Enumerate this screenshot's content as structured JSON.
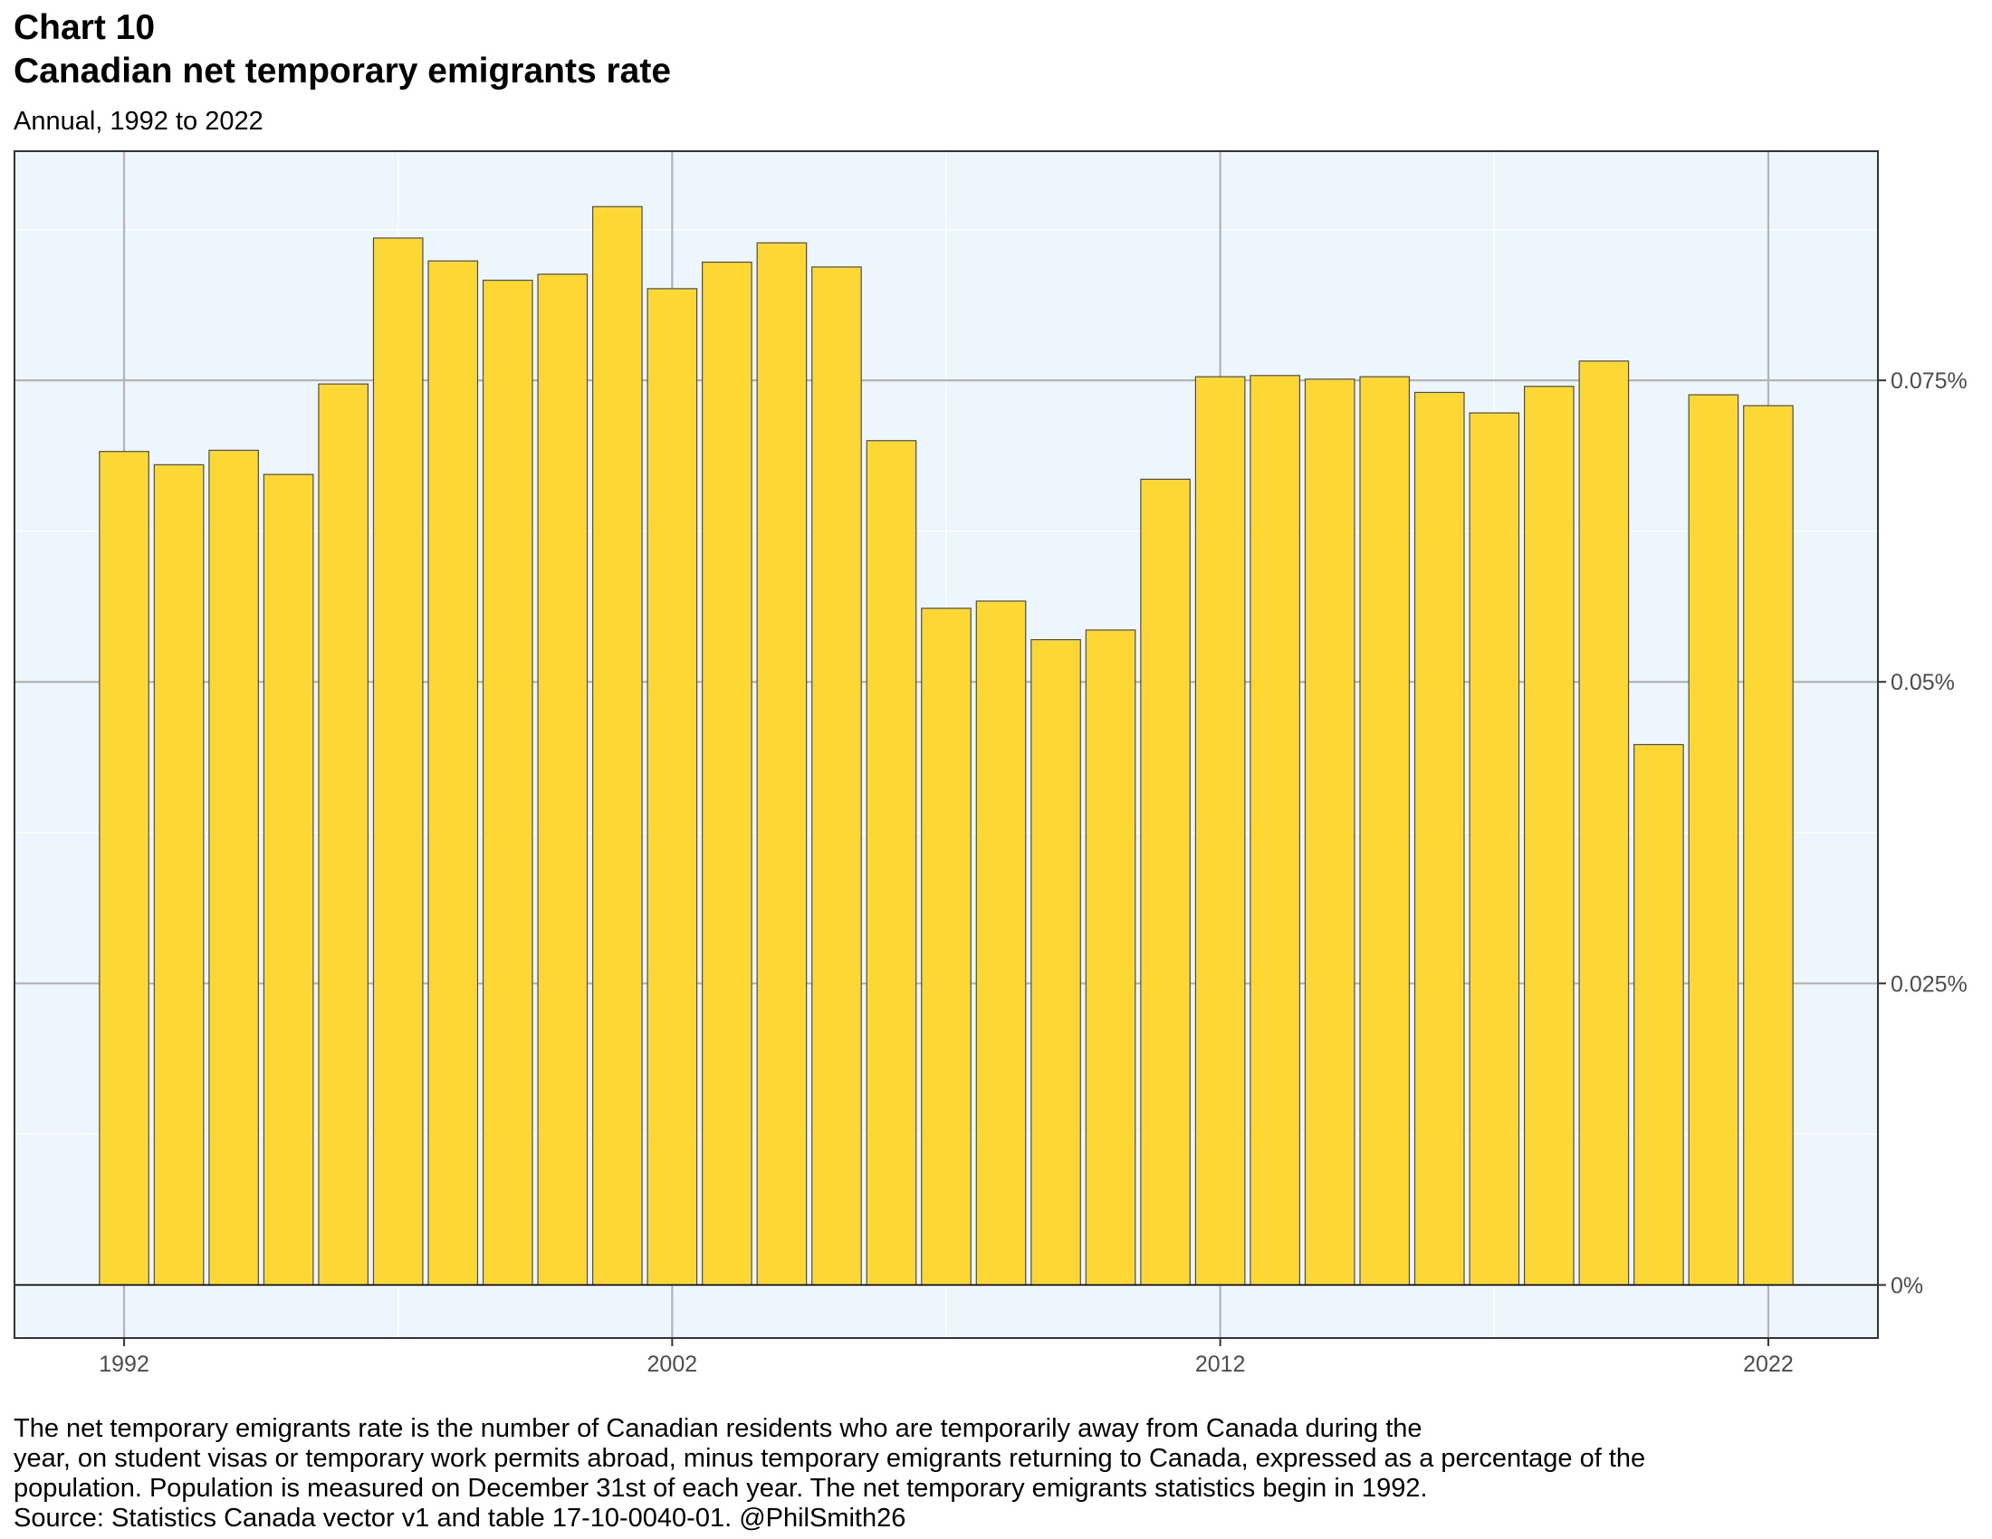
{
  "header": {
    "chart_number": "Chart 10",
    "title": "Canadian net temporary emigrants rate",
    "subtitle": "Annual, 1992 to 2022"
  },
  "caption": {
    "lines": [
      "The net temporary emigrants rate is the number of Canadian residents who are temporarily away from Canada during the",
      "year, on student visas or temporary work permits abroad, minus temporary emigrants returning to Canada, expressed as a percentage of the",
      "population. Population is measured on December 31st of each year. The net temporary emigrants statistics begin in 1992.",
      "Source: Statistics Canada vector v1 and table 17-10-0040-01. @PhilSmith26"
    ]
  },
  "chart_data": {
    "type": "bar",
    "title": "Canadian net temporary emigrants rate",
    "subtitle": "Annual, 1992 to 2022",
    "xlabel": "",
    "ylabel": "",
    "x": [
      1992,
      1993,
      1994,
      1995,
      1996,
      1997,
      1998,
      1999,
      2000,
      2001,
      2002,
      2003,
      2004,
      2005,
      2006,
      2007,
      2008,
      2009,
      2010,
      2011,
      2012,
      2013,
      2014,
      2015,
      2016,
      2017,
      2018,
      2019,
      2020,
      2021,
      2022
    ],
    "values": [
      0.0691,
      0.068,
      0.0692,
      0.0672,
      0.0747,
      0.0868,
      0.0849,
      0.0833,
      0.0838,
      0.0894,
      0.0826,
      0.0848,
      0.0864,
      0.0844,
      0.07,
      0.0561,
      0.0567,
      0.0535,
      0.0543,
      0.0668,
      0.0753,
      0.0754,
      0.0751,
      0.0753,
      0.074,
      0.0723,
      0.0745,
      0.0766,
      0.0448,
      0.0738,
      0.0729
    ],
    "value_unit": "percent",
    "ylim": [
      -0.0044,
      0.094
    ],
    "xlim": [
      1990.0,
      2024.0
    ],
    "y_ticks": [
      0,
      0.025,
      0.05,
      0.075
    ],
    "y_tick_labels": [
      "0%",
      "0.025%",
      "0.05%",
      "0.075%"
    ],
    "x_ticks": [
      1992,
      2002,
      2012,
      2022
    ],
    "x_tick_labels": [
      "1992",
      "2002",
      "2012",
      "2022"
    ],
    "y_axis_position": "right",
    "grid": true,
    "legend": "none",
    "colors": {
      "bar_fill": "#FDD835",
      "bar_stroke": "#4d4d4d",
      "panel_background": "#EEF6FD",
      "major_grid": "#b3b3b3",
      "minor_grid": "#ffffff",
      "zero_line": "#000000"
    }
  }
}
